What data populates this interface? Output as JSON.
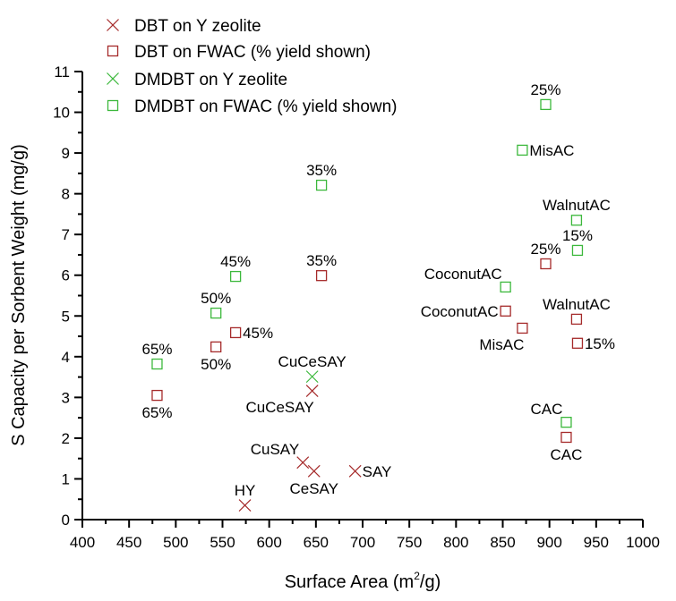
{
  "chart_data": {
    "type": "scatter",
    "title": "",
    "xlabel": "Surface Area (m",
    "xlabel_sup": "2",
    "xlabel_tail": "/g)",
    "ylabel": "S Capacity per Sorbent Weight (mg/g)",
    "xlim": [
      400,
      1000
    ],
    "ylim": [
      0,
      11
    ],
    "x_ticks": [
      "400",
      "450",
      "500",
      "550",
      "600",
      "650",
      "700",
      "750",
      "800",
      "850",
      "900",
      "950",
      "1000"
    ],
    "y_ticks": [
      "0",
      "1",
      "2",
      "3",
      "4",
      "5",
      "6",
      "7",
      "8",
      "9",
      "10",
      "11"
    ],
    "grid": false,
    "legend_position": "top-left",
    "colors": {
      "red": "#a52a2a",
      "green": "#3cb83c"
    },
    "series": [
      {
        "name": "DBT on Y zeolite",
        "marker": "x",
        "color": "#a52a2a",
        "points": [
          {
            "x": 646,
            "y": 3.16,
            "label": "CuCeSAY",
            "anchor": "below-left"
          },
          {
            "x": 636,
            "y": 1.4,
            "label": "CuSAY",
            "anchor": "above-left"
          },
          {
            "x": 648,
            "y": 1.19,
            "label": "CeSAY",
            "anchor": "below"
          },
          {
            "x": 692,
            "y": 1.19,
            "label": "SAY",
            "anchor": "right"
          },
          {
            "x": 574,
            "y": 0.35,
            "label": "HY",
            "anchor": "above"
          }
        ]
      },
      {
        "name": "DBT on FWAC (% yield shown)",
        "marker": "square",
        "color": "#a52a2a",
        "points": [
          {
            "x": 656,
            "y": 5.99,
            "label": "35%",
            "anchor": "above"
          },
          {
            "x": 564,
            "y": 4.59,
            "label": "45%",
            "anchor": "right"
          },
          {
            "x": 543,
            "y": 4.24,
            "label": "50%",
            "anchor": "below"
          },
          {
            "x": 480,
            "y": 3.05,
            "label": "65%",
            "anchor": "below"
          },
          {
            "x": 896,
            "y": 6.28,
            "label": "25%",
            "anchor": "above"
          },
          {
            "x": 853,
            "y": 5.12,
            "label": "CoconutAC",
            "anchor": "left"
          },
          {
            "x": 871,
            "y": 4.7,
            "label": "MisAC",
            "anchor": "below-left"
          },
          {
            "x": 929,
            "y": 4.92,
            "label": "WalnutAC",
            "anchor": "above"
          },
          {
            "x": 930,
            "y": 4.33,
            "label": "15%",
            "anchor": "right"
          },
          {
            "x": 918,
            "y": 2.02,
            "label": "CAC",
            "anchor": "below"
          }
        ]
      },
      {
        "name": "DMDBT on Y zeolite",
        "marker": "x",
        "color": "#3cb83c",
        "points": [
          {
            "x": 646,
            "y": 3.51,
            "label": "CuCeSAY",
            "anchor": "above"
          }
        ]
      },
      {
        "name": "DMDBT on FWAC (% yield shown)",
        "marker": "square",
        "color": "#3cb83c",
        "points": [
          {
            "x": 656,
            "y": 8.21,
            "label": "35%",
            "anchor": "above"
          },
          {
            "x": 564,
            "y": 5.97,
            "label": "45%",
            "anchor": "above"
          },
          {
            "x": 543,
            "y": 5.07,
            "label": "50%",
            "anchor": "above"
          },
          {
            "x": 480,
            "y": 3.82,
            "label": "65%",
            "anchor": "above"
          },
          {
            "x": 896,
            "y": 10.19,
            "label": "25%",
            "anchor": "above"
          },
          {
            "x": 871,
            "y": 9.07,
            "label": "MisAC",
            "anchor": "right"
          },
          {
            "x": 929,
            "y": 7.35,
            "label": "WalnutAC",
            "anchor": "above"
          },
          {
            "x": 930,
            "y": 6.61,
            "label": "15%",
            "anchor": "above"
          },
          {
            "x": 853,
            "y": 5.71,
            "label": "CoconutAC",
            "anchor": "above-left"
          },
          {
            "x": 918,
            "y": 2.39,
            "label": "CAC",
            "anchor": "above-left"
          }
        ]
      }
    ]
  }
}
